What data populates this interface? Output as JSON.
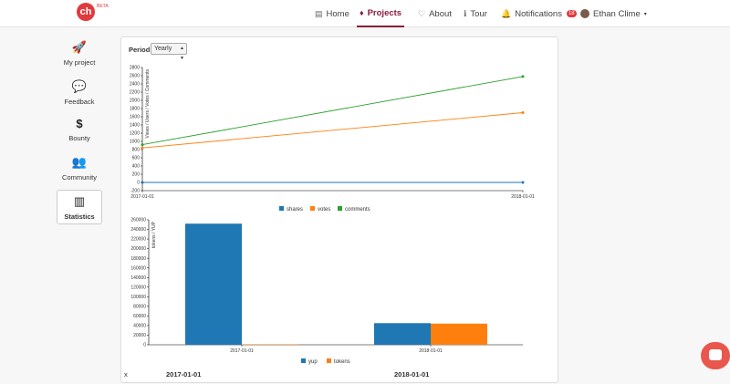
{
  "header": {
    "logo_text": "ch",
    "logo_badge": "BETA",
    "nav": [
      {
        "label": "Home",
        "icon": "home-icon"
      },
      {
        "label": "Projects",
        "icon": "diamond-icon"
      },
      {
        "label": "About",
        "icon": "heart-icon"
      },
      {
        "label": "Tour",
        "icon": "info-icon"
      },
      {
        "label": "Notifications",
        "icon": "bell-icon",
        "badge": "18"
      }
    ],
    "user": {
      "name": "Ethan Clime"
    }
  },
  "sidebar": {
    "items": [
      {
        "label": "My project",
        "icon": "rocket-icon"
      },
      {
        "label": "Feedback",
        "icon": "speech-bubble-icon"
      },
      {
        "label": "Bounty",
        "icon": "dollar-icon"
      },
      {
        "label": "Community",
        "icon": "users-icon"
      },
      {
        "label": "Statistics",
        "icon": "bar-chart-icon"
      }
    ],
    "active": "Statistics"
  },
  "filters": {
    "period_label": "Period",
    "period_value": "Yearly"
  },
  "colors": {
    "blue": "#1f77b4",
    "orange": "#ff7f0e",
    "green": "#2ca02c"
  },
  "chart_data": [
    {
      "type": "line",
      "ylabel": "Views / Users / Votes / Comments",
      "x": [
        "2017-01-01",
        "2018-01-01"
      ],
      "ylim": [
        -200,
        2800
      ],
      "yticks": [
        -200,
        0,
        200,
        400,
        600,
        800,
        1000,
        1200,
        1400,
        1600,
        1800,
        2000,
        2200,
        2400,
        2600,
        2800
      ],
      "series": [
        {
          "name": "shares",
          "values": [
            0,
            0
          ]
        },
        {
          "name": "votes",
          "values": [
            840,
            1700
          ]
        },
        {
          "name": "comments",
          "values": [
            920,
            2580
          ]
        }
      ]
    },
    {
      "type": "bar",
      "ylabel": "tokens / YUP",
      "categories": [
        "2017-01-01",
        "2018-01-01"
      ],
      "ylim": [
        0,
        260000
      ],
      "yticks": [
        0,
        20000,
        40000,
        60000,
        80000,
        100000,
        120000,
        140000,
        160000,
        180000,
        200000,
        220000,
        240000,
        260000
      ],
      "series": [
        {
          "name": "yup",
          "values": [
            252000,
            45000
          ]
        },
        {
          "name": "tokens",
          "values": [
            1000,
            44000
          ]
        }
      ]
    }
  ],
  "table": {
    "header": [
      "x",
      "2017-01-01",
      "2018-01-01"
    ]
  }
}
